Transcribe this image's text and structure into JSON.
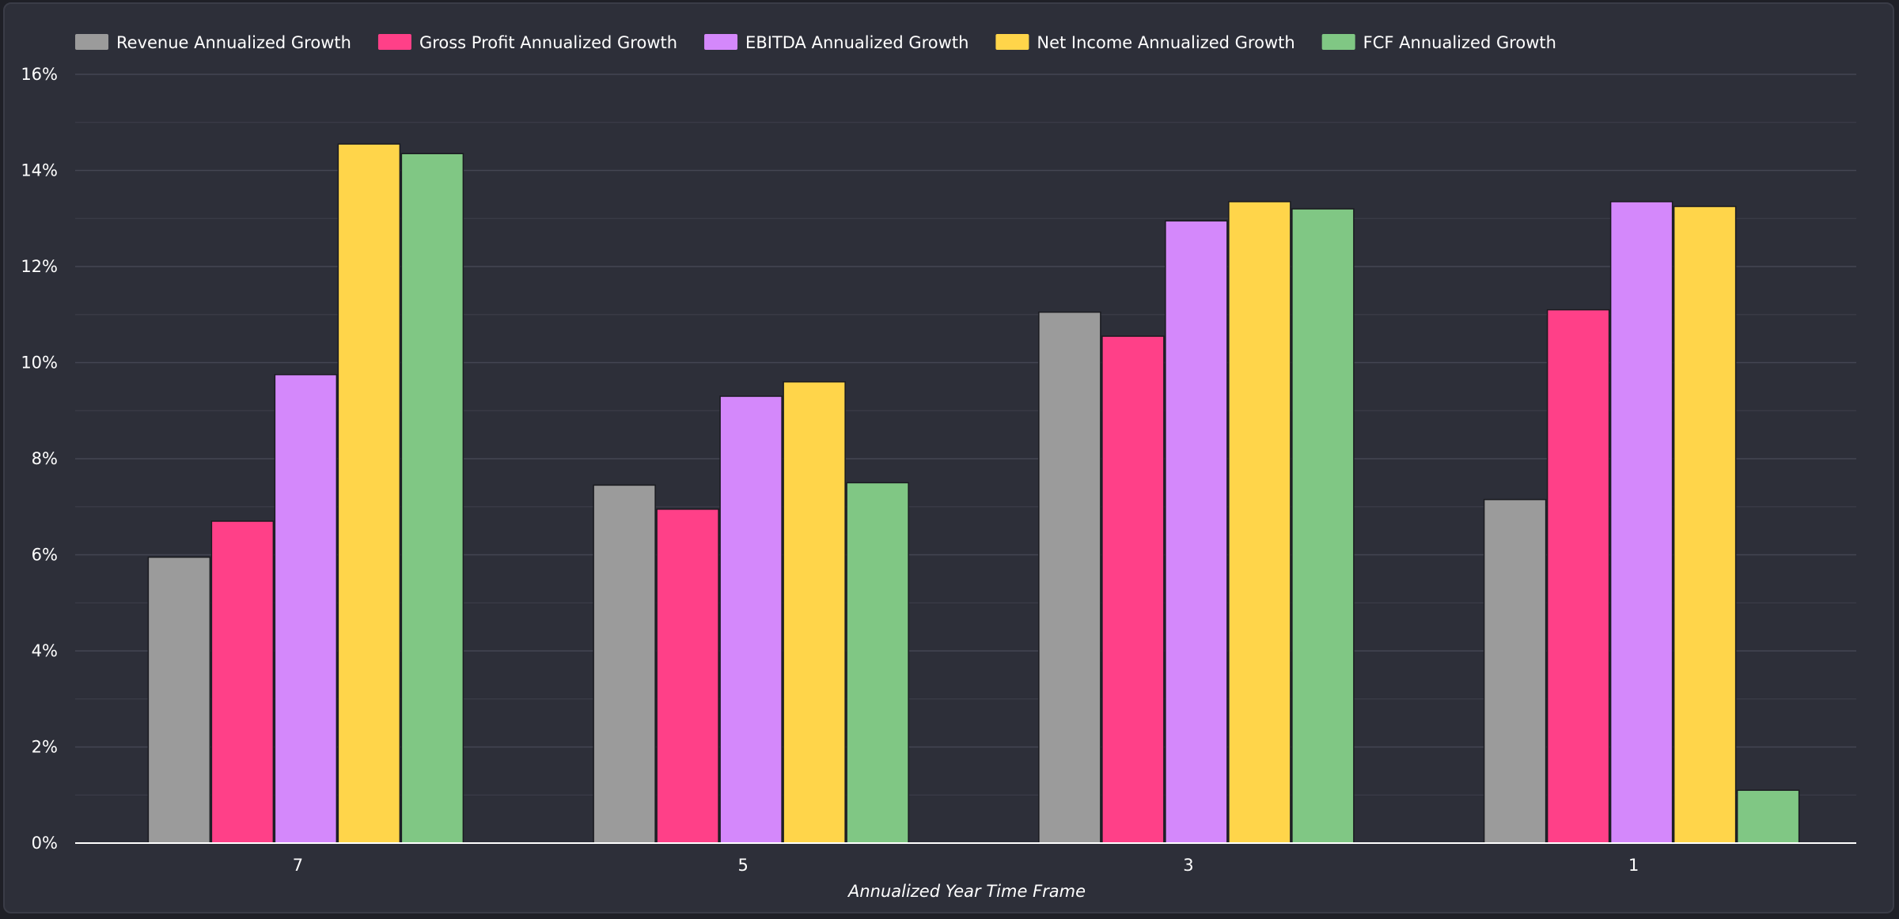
{
  "chart_data": {
    "type": "bar",
    "title": "",
    "xlabel": "Annualized Year Time Frame",
    "ylabel": "",
    "categories": [
      "7",
      "5",
      "3",
      "1"
    ],
    "ylim": [
      0,
      16
    ],
    "yticks": [
      0,
      2,
      4,
      6,
      8,
      10,
      12,
      14,
      16
    ],
    "ytick_labels": [
      "0%",
      "2%",
      "4%",
      "6%",
      "8%",
      "10%",
      "12%",
      "14%",
      "16%"
    ],
    "grid": true,
    "legend_position": "top-left",
    "series": [
      {
        "name": "Revenue Annualized Growth",
        "color": "#9b9b9b",
        "values": [
          5.95,
          7.45,
          11.05,
          7.15
        ]
      },
      {
        "name": "Gross Profit Annualized Growth",
        "color": "#ff4088",
        "values": [
          6.7,
          6.95,
          10.55,
          11.1
        ]
      },
      {
        "name": "EBITDA Annualized Growth",
        "color": "#d488fb",
        "values": [
          9.75,
          9.3,
          12.95,
          13.35
        ]
      },
      {
        "name": "Net Income Annualized Growth",
        "color": "#ffd54a",
        "values": [
          14.55,
          9.6,
          13.35,
          13.25
        ]
      },
      {
        "name": "FCF Annualized Growth",
        "color": "#80c784",
        "values": [
          14.35,
          7.5,
          13.2,
          1.1
        ]
      }
    ]
  }
}
